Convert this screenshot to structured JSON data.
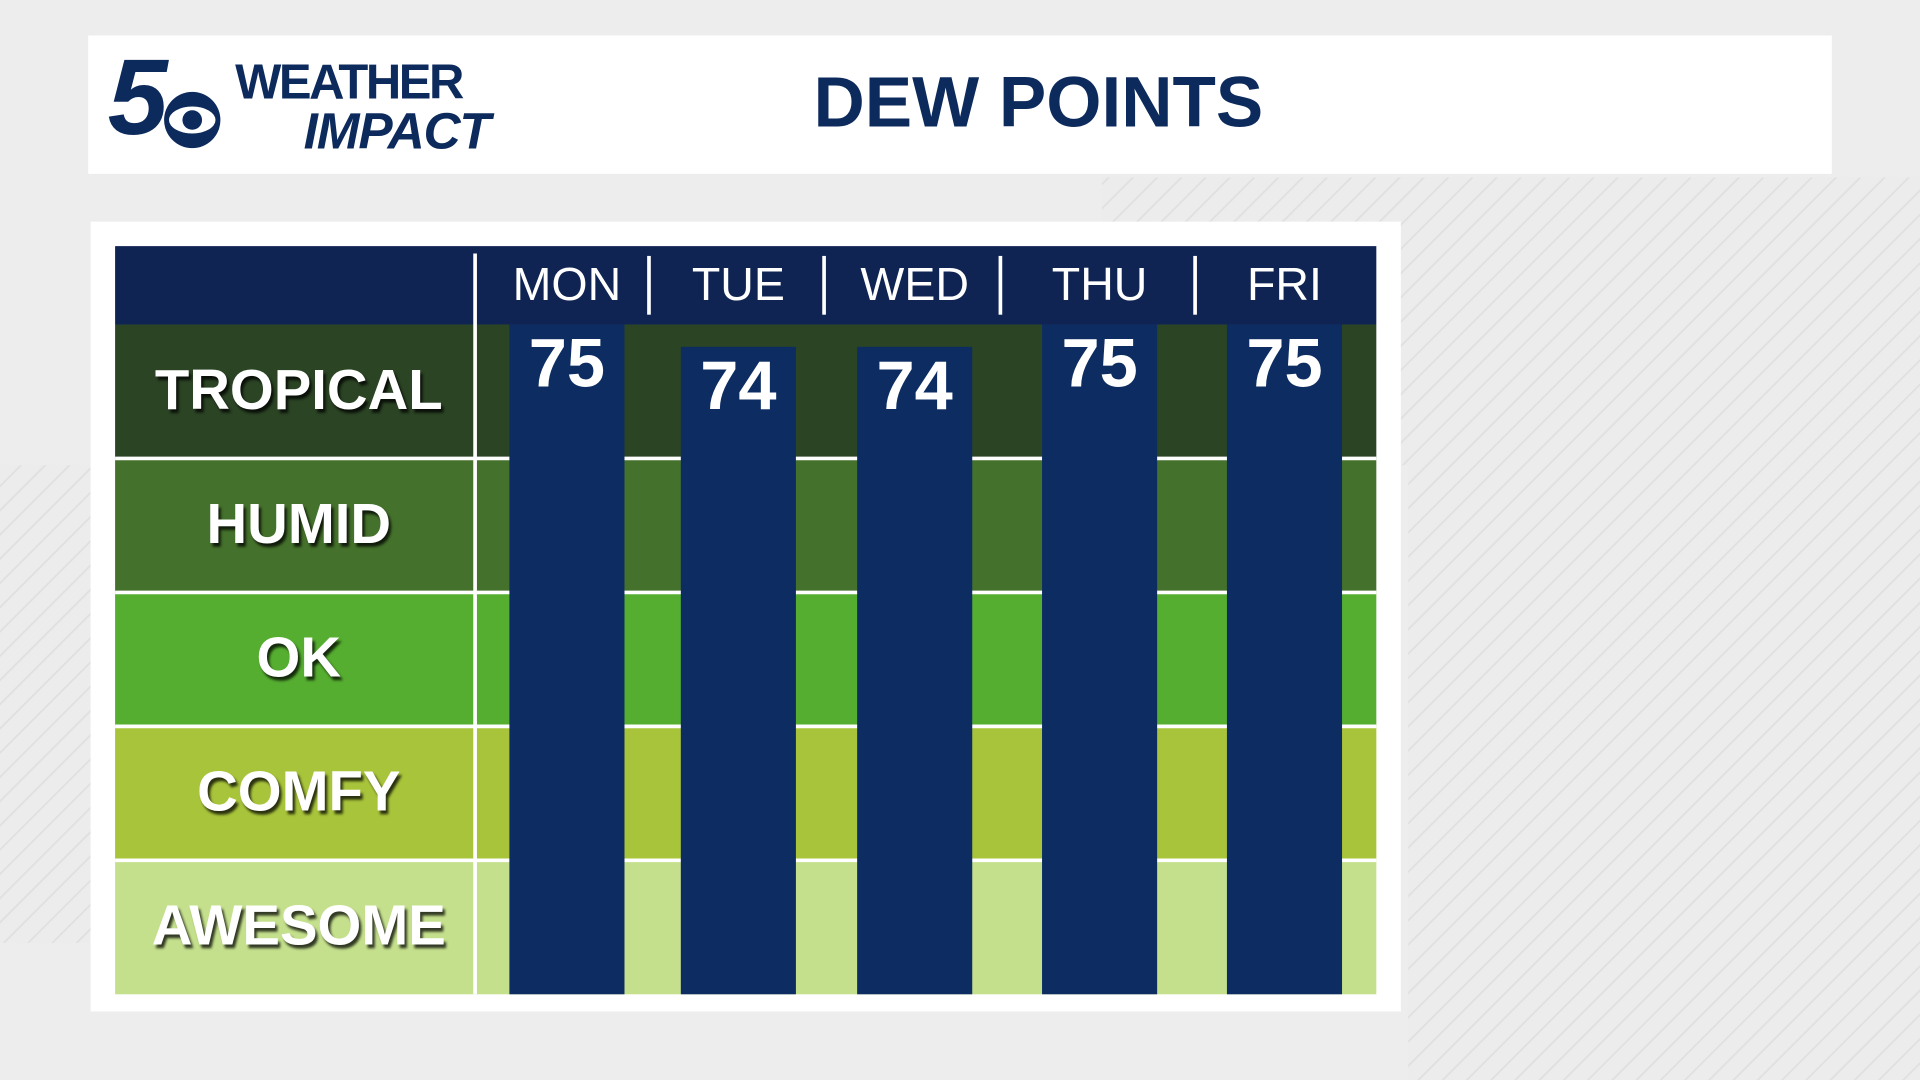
{
  "header": {
    "logo_number": "5",
    "logo_line1": "WEATHER",
    "logo_line2": "IMPACT"
  },
  "chart_data": {
    "type": "bar",
    "title": "DEW POINTS",
    "categories": [
      "MON",
      "TUE",
      "WED",
      "THU",
      "FRI"
    ],
    "values": [
      75,
      74,
      74,
      75,
      75
    ],
    "color": "#0d2d62",
    "ylim": [
      45,
      75
    ],
    "bands": [
      {
        "label": "TROPICAL",
        "color": "#2b4424"
      },
      {
        "label": "HUMID",
        "color": "#44712b"
      },
      {
        "label": "OK",
        "color": "#55ae30"
      },
      {
        "label": "COMFY",
        "color": "#a8c43a"
      },
      {
        "label": "AWESOME",
        "color": "#c4e08c"
      }
    ]
  }
}
